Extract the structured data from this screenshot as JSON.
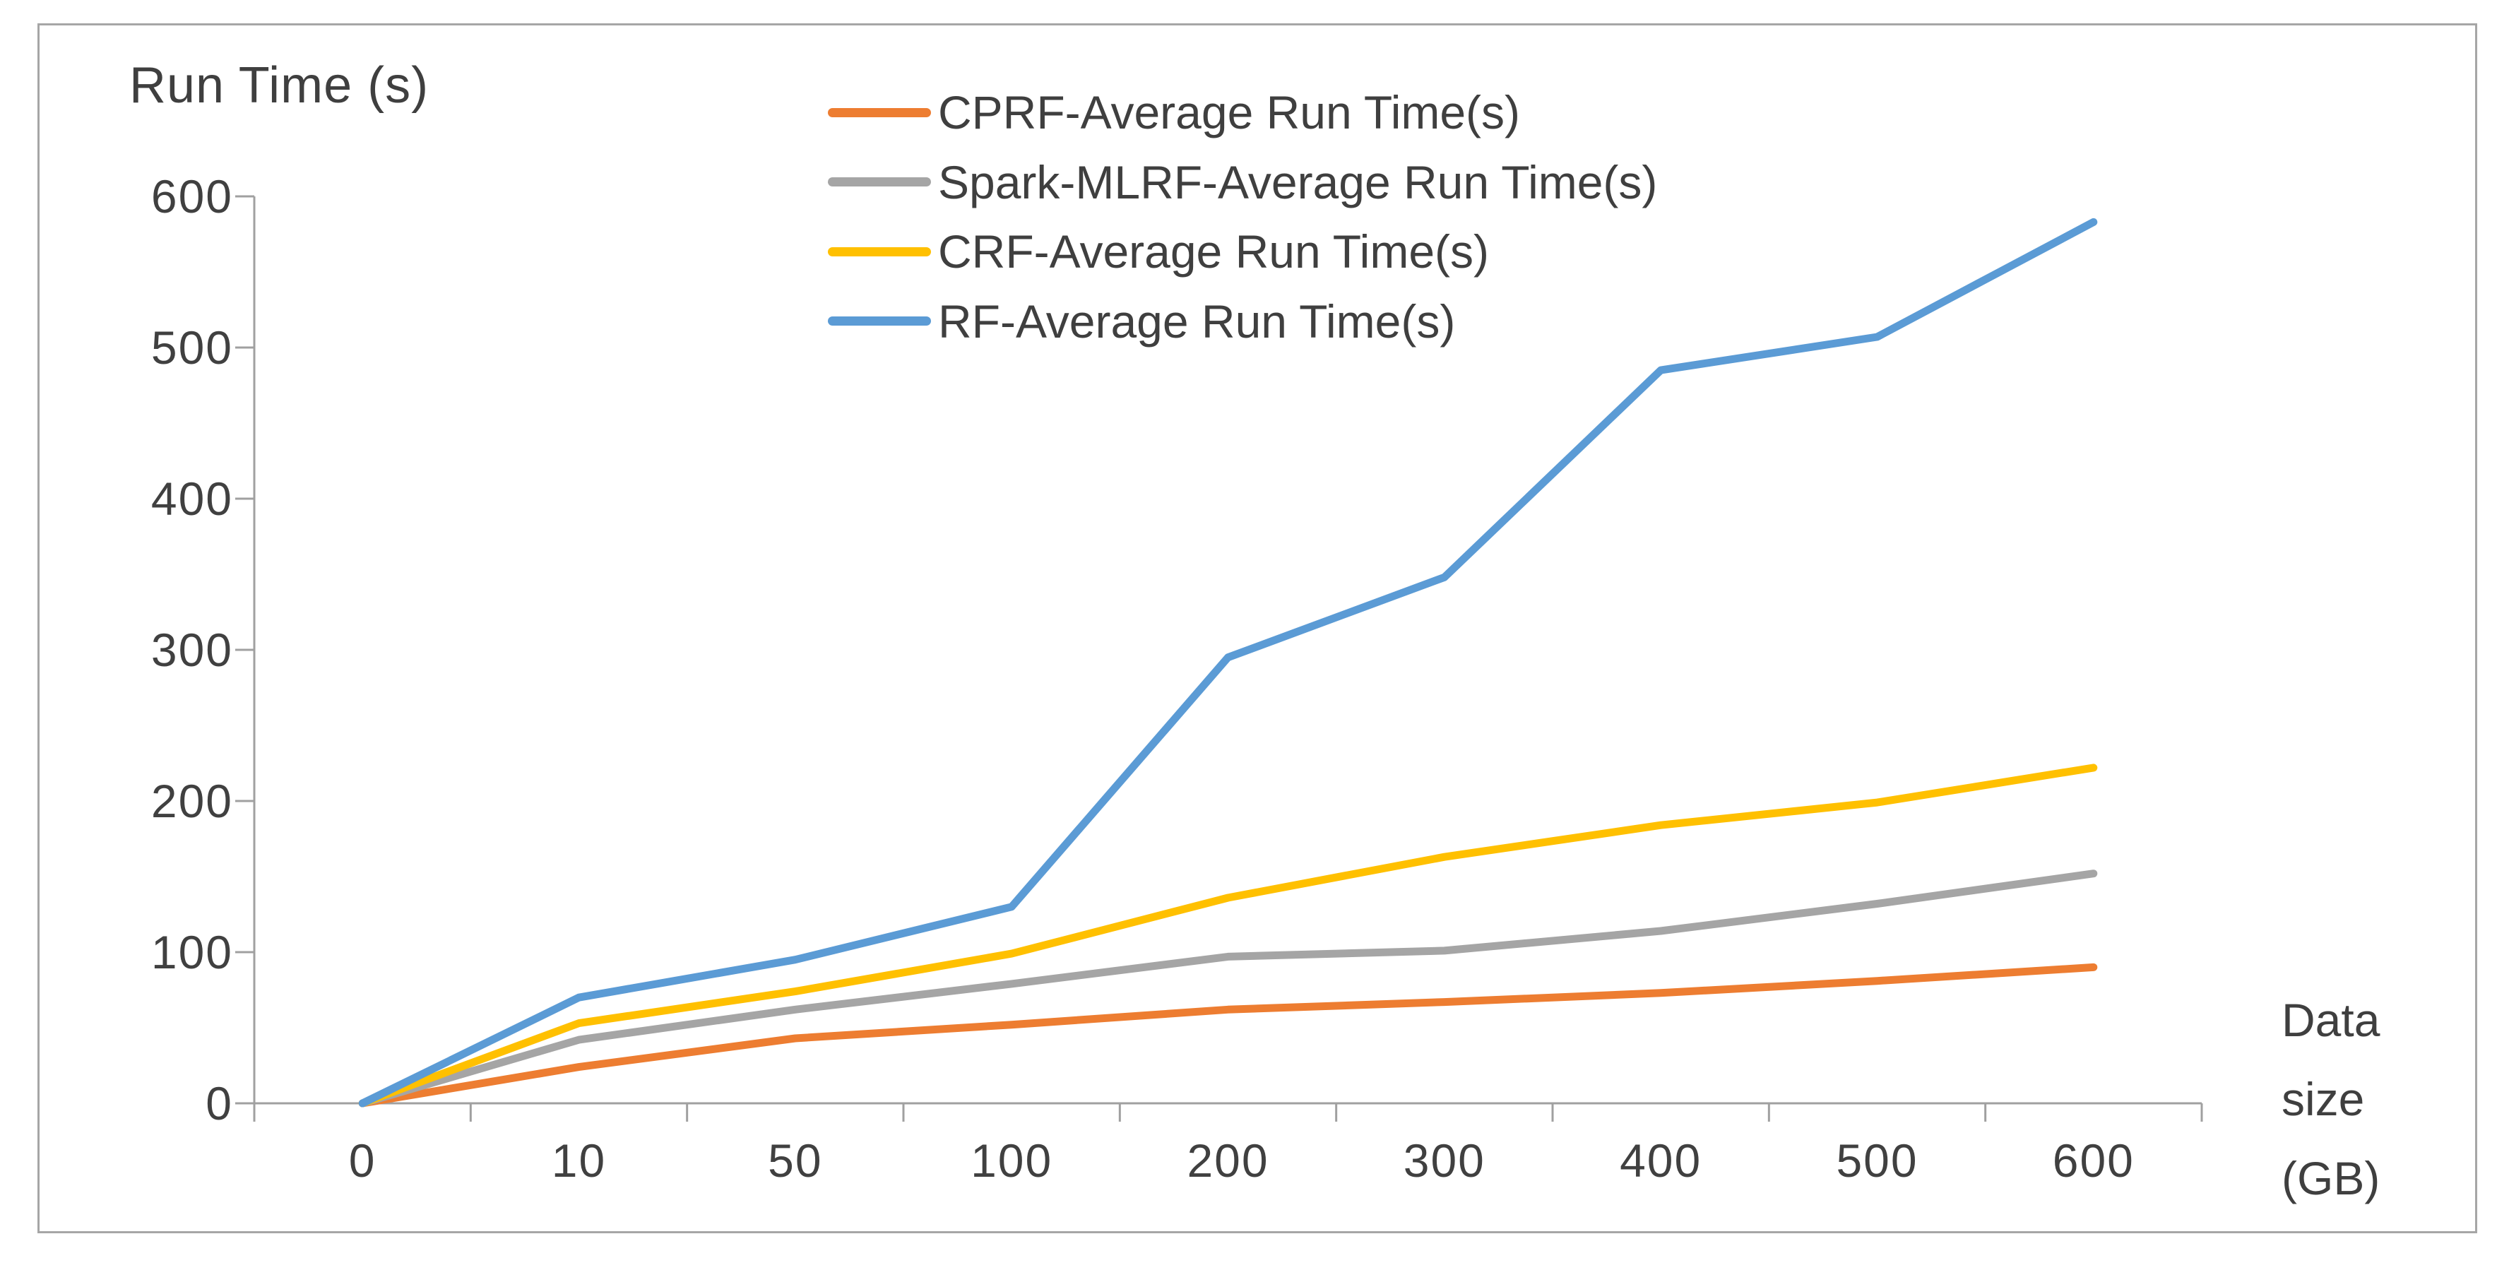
{
  "chart_data": {
    "type": "line",
    "title": "Run Time (s)",
    "ylabel": "Run Time (s)",
    "xlabel": "Data size (GB)",
    "xlabel_lines": [
      "Data",
      "size",
      "(GB)"
    ],
    "categories": [
      "0",
      "10",
      "50",
      "100",
      "200",
      "300",
      "400",
      "500",
      "600"
    ],
    "y_ticks": [
      0,
      100,
      200,
      300,
      400,
      500,
      600
    ],
    "ylim": [
      0,
      600
    ],
    "grid": false,
    "legend_position": "top-center, stacked vertically",
    "series": [
      {
        "name": "CPRF-Average Run Time(s)",
        "color": "#ED7D31",
        "values": [
          0,
          24,
          43,
          52,
          62,
          67,
          73,
          81,
          90
        ]
      },
      {
        "name": "Spark-MLRF-Average Run Time(s)",
        "color": "#A5A5A5",
        "values": [
          0,
          42,
          62,
          79,
          97,
          101,
          114,
          132,
          152
        ]
      },
      {
        "name": "CRF-Average Run Time(s)",
        "color": "#FFC000",
        "values": [
          0,
          53,
          74,
          99,
          136,
          163,
          184,
          199,
          222
        ]
      },
      {
        "name": "RF-Average Run Time(s)",
        "color": "#5B9BD5",
        "values": [
          0,
          70,
          95,
          130,
          295,
          348,
          485,
          507,
          583
        ]
      }
    ],
    "colors": {
      "axis": "#a0a0a0",
      "text": "#404040",
      "frame_border": "#a6a6a6",
      "background": "#ffffff"
    }
  }
}
